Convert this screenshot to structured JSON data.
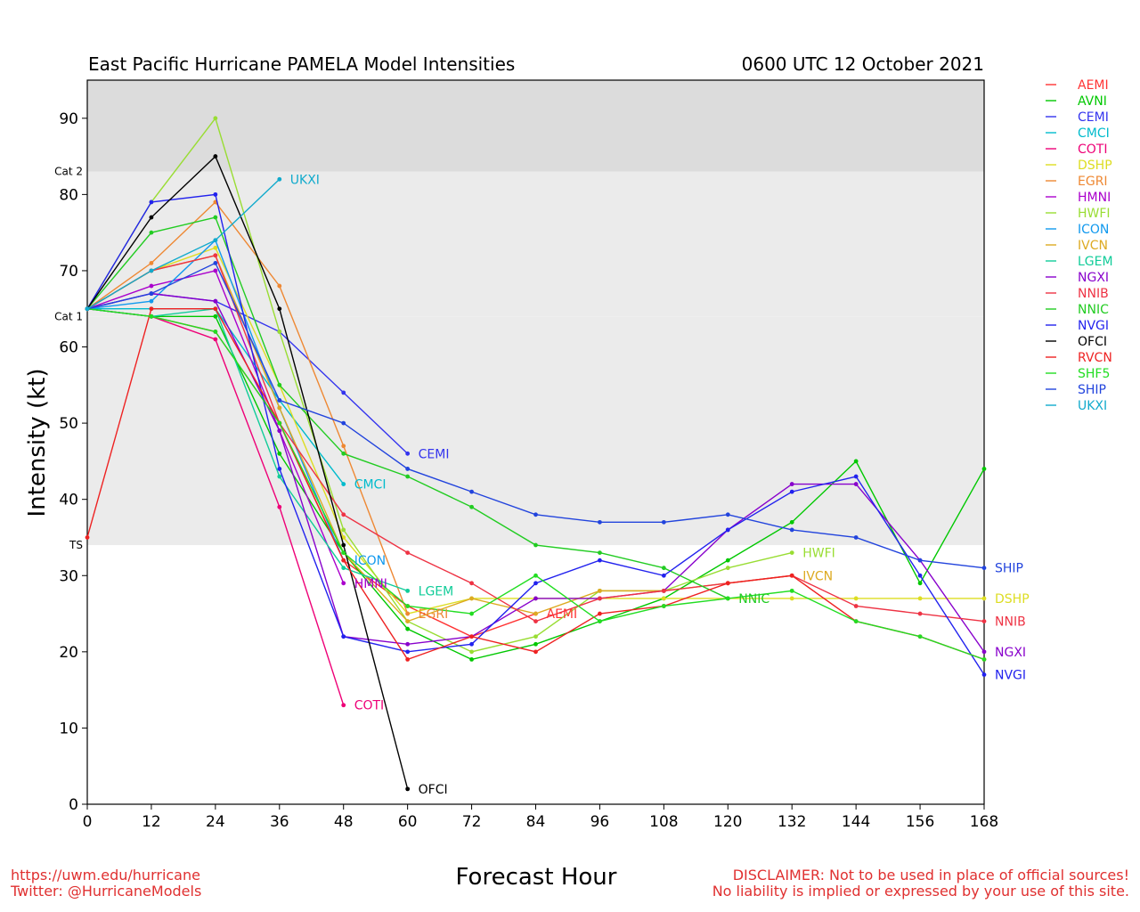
{
  "page": {
    "title_left": "East Pacific Hurricane PAMELA Model Intensities",
    "title_right": "0600 UTC 12 October 2021",
    "footer_left": [
      "https://uwm.edu/hurricane",
      "Twitter: @HurricaneModels"
    ],
    "footer_right": [
      "DISCLAIMER: Not to be used in place of official sources!",
      "No liability is implied or expressed by your use of this site."
    ]
  },
  "chart_data": {
    "type": "line",
    "xlabel": "Forecast Hour",
    "ylabel": "Intensity (kt)",
    "xlim": [
      0,
      168
    ],
    "ylim": [
      0,
      95
    ],
    "xticks": [
      0,
      12,
      24,
      36,
      48,
      60,
      72,
      84,
      96,
      108,
      120,
      132,
      144,
      156,
      168
    ],
    "yticks": [
      0,
      10,
      20,
      30,
      40,
      50,
      60,
      70,
      80,
      90
    ],
    "grid": false,
    "legend": "right",
    "bands": [
      {
        "from": 34,
        "to": 64,
        "color": "#ebebeb"
      },
      {
        "from": 64,
        "to": 83,
        "color": "#ebebeb"
      },
      {
        "from": 83,
        "to": 95,
        "color": "#dcdcdc"
      }
    ],
    "threshold_labels": [
      {
        "label": "TS",
        "value": 34
      },
      {
        "label": "Cat 1",
        "value": 64
      },
      {
        "label": "Cat 2",
        "value": 83
      }
    ],
    "series": [
      {
        "name": "AEMI",
        "color": "#ff3333",
        "x": [
          0,
          12,
          24,
          36,
          48,
          60,
          72,
          84
        ],
        "y": [
          65,
          64,
          62,
          50,
          32,
          26,
          22,
          25
        ]
      },
      {
        "name": "AVNI",
        "color": "#00c800",
        "x": [
          0,
          12,
          24,
          36,
          48,
          60,
          72,
          84,
          96,
          108,
          120,
          132,
          144,
          156,
          168
        ],
        "y": [
          65,
          64,
          64,
          46,
          33,
          23,
          19,
          21,
          24,
          27,
          32,
          37,
          45,
          29,
          44
        ]
      },
      {
        "name": "CEMI",
        "color": "#3333ee",
        "x": [
          0,
          12,
          24,
          36,
          48,
          60
        ],
        "y": [
          65,
          67,
          66,
          62,
          54,
          46
        ]
      },
      {
        "name": "CMCI",
        "color": "#00bbcc",
        "x": [
          0,
          12,
          24,
          36,
          48
        ],
        "y": [
          65,
          65,
          65,
          53,
          42
        ]
      },
      {
        "name": "COTI",
        "color": "#ee0077",
        "x": [
          0,
          12,
          24,
          36,
          48
        ],
        "y": [
          65,
          64,
          61,
          39,
          13
        ]
      },
      {
        "name": "DSHP",
        "color": "#dddd22",
        "x": [
          0,
          12,
          24,
          36,
          48,
          60,
          72,
          84,
          96,
          108,
          120,
          132,
          144,
          156,
          168
        ],
        "y": [
          65,
          70,
          73,
          55,
          35,
          25,
          27,
          27,
          27,
          27,
          27,
          27,
          27,
          27,
          27
        ]
      },
      {
        "name": "EGRI",
        "color": "#ee8833",
        "x": [
          0,
          12,
          24,
          36,
          48,
          60
        ],
        "y": [
          65,
          71,
          79,
          68,
          47,
          25
        ]
      },
      {
        "name": "HMNI",
        "color": "#aa00cc",
        "x": [
          0,
          12,
          24,
          36,
          48
        ],
        "y": [
          65,
          68,
          70,
          49,
          29
        ]
      },
      {
        "name": "HWFI",
        "color": "#99dd33",
        "x": [
          0,
          12,
          24,
          36,
          48,
          60,
          72,
          84,
          96,
          108,
          120,
          132
        ],
        "y": [
          65,
          79,
          90,
          62,
          36,
          24,
          20,
          22,
          28,
          28,
          31,
          33
        ]
      },
      {
        "name": "ICON",
        "color": "#1199ee",
        "x": [
          0,
          12,
          24,
          36,
          48
        ],
        "y": [
          65,
          66,
          74,
          52,
          32
        ]
      },
      {
        "name": "IVCN",
        "color": "#ddaa22",
        "x": [
          0,
          12,
          24,
          36,
          48,
          60,
          72,
          84,
          96,
          108,
          120,
          132
        ],
        "y": [
          65,
          70,
          72,
          52,
          33,
          24,
          27,
          25,
          28,
          28,
          29,
          30
        ]
      },
      {
        "name": "LGEM",
        "color": "#11cc99",
        "x": [
          0,
          12,
          24,
          36,
          48,
          60
        ],
        "y": [
          65,
          64,
          65,
          43,
          31,
          28
        ]
      },
      {
        "name": "NGXI",
        "color": "#8800cc",
        "x": [
          0,
          12,
          24,
          36,
          48,
          60,
          72,
          84,
          96,
          108,
          120,
          132,
          144,
          156,
          168
        ],
        "y": [
          65,
          67,
          66,
          49,
          22,
          21,
          22,
          27,
          27,
          28,
          36,
          42,
          42,
          32,
          20
        ]
      },
      {
        "name": "NNIB",
        "color": "#ee3344",
        "x": [
          0,
          12,
          24,
          36,
          48,
          60,
          72,
          84,
          96,
          108,
          120,
          132,
          144,
          156,
          168
        ],
        "y": [
          65,
          70,
          72,
          50,
          38,
          33,
          29,
          24,
          27,
          28,
          29,
          30,
          26,
          25,
          24
        ]
      },
      {
        "name": "NNIC",
        "color": "#22cc22",
        "x": [
          0,
          12,
          24,
          36,
          48,
          60,
          72,
          84,
          96,
          108,
          120
        ],
        "y": [
          65,
          75,
          77,
          55,
          46,
          43,
          39,
          34,
          33,
          31,
          27
        ]
      },
      {
        "name": "NVGI",
        "color": "#2222ee",
        "x": [
          0,
          12,
          24,
          36,
          48,
          60,
          72,
          84,
          96,
          108,
          120,
          132,
          144,
          156,
          168
        ],
        "y": [
          65,
          79,
          80,
          44,
          22,
          20,
          21,
          29,
          32,
          30,
          36,
          41,
          43,
          30,
          17
        ]
      },
      {
        "name": "OFCI",
        "color": "#000000",
        "x": [
          0,
          12,
          24,
          36,
          48,
          60
        ],
        "y": [
          65,
          77,
          85,
          65,
          34,
          2
        ]
      },
      {
        "name": "RVCN",
        "color": "#ee2222",
        "x": [
          0,
          12,
          24,
          36,
          48,
          60,
          72,
          84,
          96,
          108,
          120,
          132,
          144,
          156,
          168
        ],
        "y": [
          35,
          65,
          65,
          50,
          32,
          19,
          22,
          20,
          25,
          26,
          29,
          30,
          24,
          22,
          19
        ]
      },
      {
        "name": "SHF5",
        "color": "#22dd22",
        "x": [
          0,
          12,
          24,
          36,
          48,
          60,
          72,
          84,
          96,
          108,
          120,
          132,
          144,
          156,
          168
        ],
        "y": [
          65,
          64,
          62,
          50,
          33,
          26,
          25,
          30,
          24,
          26,
          27,
          28,
          24,
          22,
          19
        ]
      },
      {
        "name": "SHIP",
        "color": "#2244dd",
        "x": [
          0,
          12,
          24,
          36,
          48,
          60,
          72,
          84,
          96,
          108,
          120,
          132,
          144,
          156,
          168
        ],
        "y": [
          65,
          67,
          71,
          53,
          50,
          44,
          41,
          38,
          37,
          37,
          38,
          36,
          35,
          32,
          31
        ]
      },
      {
        "name": "UKXI",
        "color": "#11aacc",
        "x": [
          0,
          12,
          24,
          36
        ],
        "y": [
          65,
          70,
          74,
          82
        ]
      }
    ]
  }
}
